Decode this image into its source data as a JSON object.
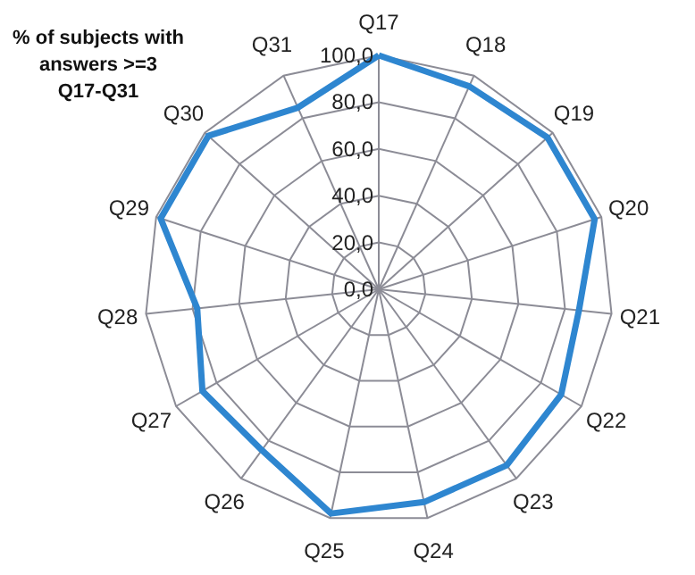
{
  "chart_data": {
    "type": "radar",
    "title": "% of subjects with answers >=3 Q17-Q31",
    "categories": [
      "Q17",
      "Q18",
      "Q19",
      "Q20",
      "Q21",
      "Q22",
      "Q23",
      "Q24",
      "Q25",
      "Q26",
      "Q27",
      "Q28",
      "Q29",
      "Q30",
      "Q31"
    ],
    "series": [
      {
        "color": "#2e86d0",
        "values": [
          100,
          95,
          97,
          97,
          86,
          90,
          93,
          93,
          98,
          85,
          87,
          78,
          98,
          98,
          85
        ]
      }
    ],
    "ylim": [
      0,
      100
    ],
    "yticks": [
      {
        "value": 0,
        "label": "0,0"
      },
      {
        "value": 20,
        "label": "20,0"
      },
      {
        "value": 40,
        "label": "40,0"
      },
      {
        "value": 60,
        "label": "60,0"
      },
      {
        "value": 80,
        "label": "80,0"
      },
      {
        "value": 100,
        "label": "100,0"
      }
    ],
    "grid": true
  }
}
